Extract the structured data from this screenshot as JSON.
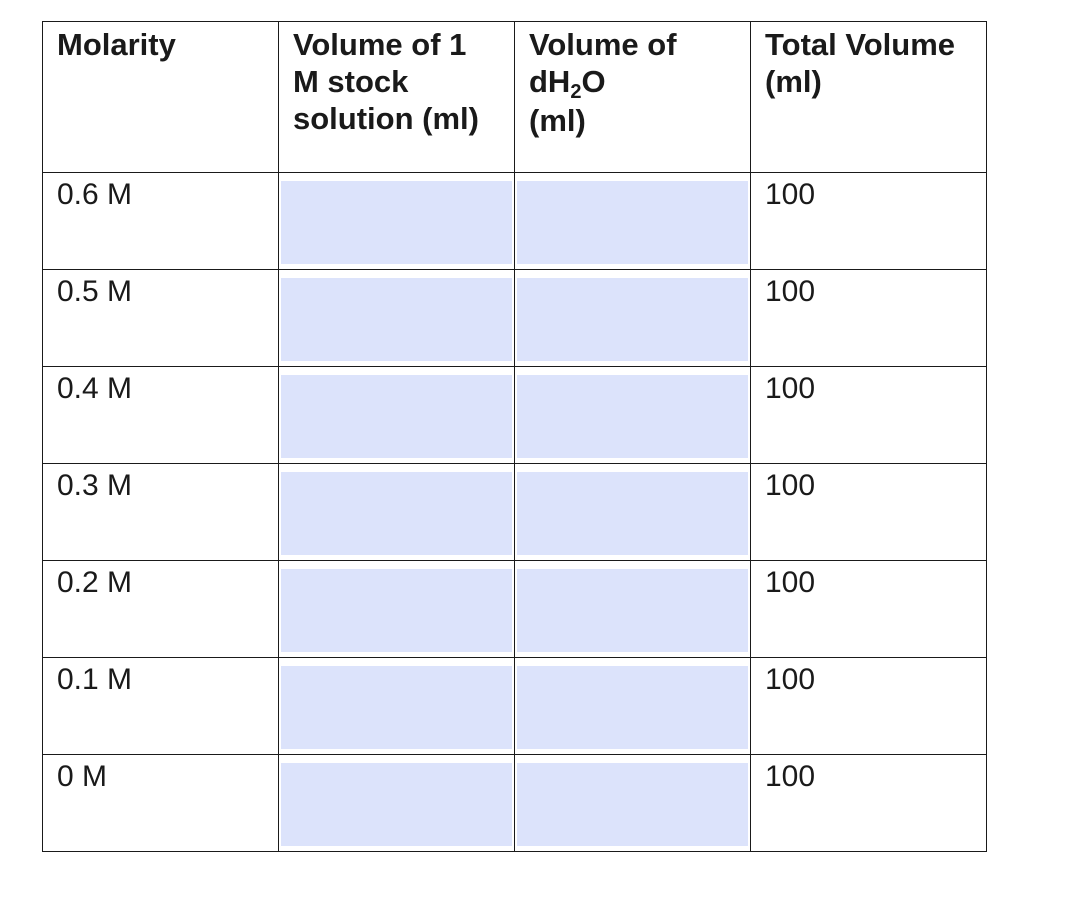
{
  "table": {
    "headers": {
      "molarity": "Molarity",
      "stock": "Volume of 1 M stock solution (ml)",
      "water_prefix": "Volume of",
      "water_formula_start": "dH",
      "water_formula_sub": "2",
      "water_formula_end": "O",
      "water_unit": "(ml)",
      "total": "Total Volume (ml)"
    },
    "rows": [
      {
        "molarity": "0.6 M",
        "stock_value": "",
        "water_value": "",
        "total": "100"
      },
      {
        "molarity": "0.5 M",
        "stock_value": "",
        "water_value": "",
        "total": "100"
      },
      {
        "molarity": "0.4 M",
        "stock_value": "",
        "water_value": "",
        "total": "100"
      },
      {
        "molarity": "0.3 M",
        "stock_value": "",
        "water_value": "",
        "total": "100"
      },
      {
        "molarity": "0.2 M",
        "stock_value": "",
        "water_value": "",
        "total": "100"
      },
      {
        "molarity": "0.1 M",
        "stock_value": "",
        "water_value": "",
        "total": "100"
      },
      {
        "molarity": "0 M",
        "stock_value": "",
        "water_value": "",
        "total": "100"
      }
    ]
  },
  "colors": {
    "field_fill": "#dce3fb",
    "border": "#1a1a1a"
  }
}
